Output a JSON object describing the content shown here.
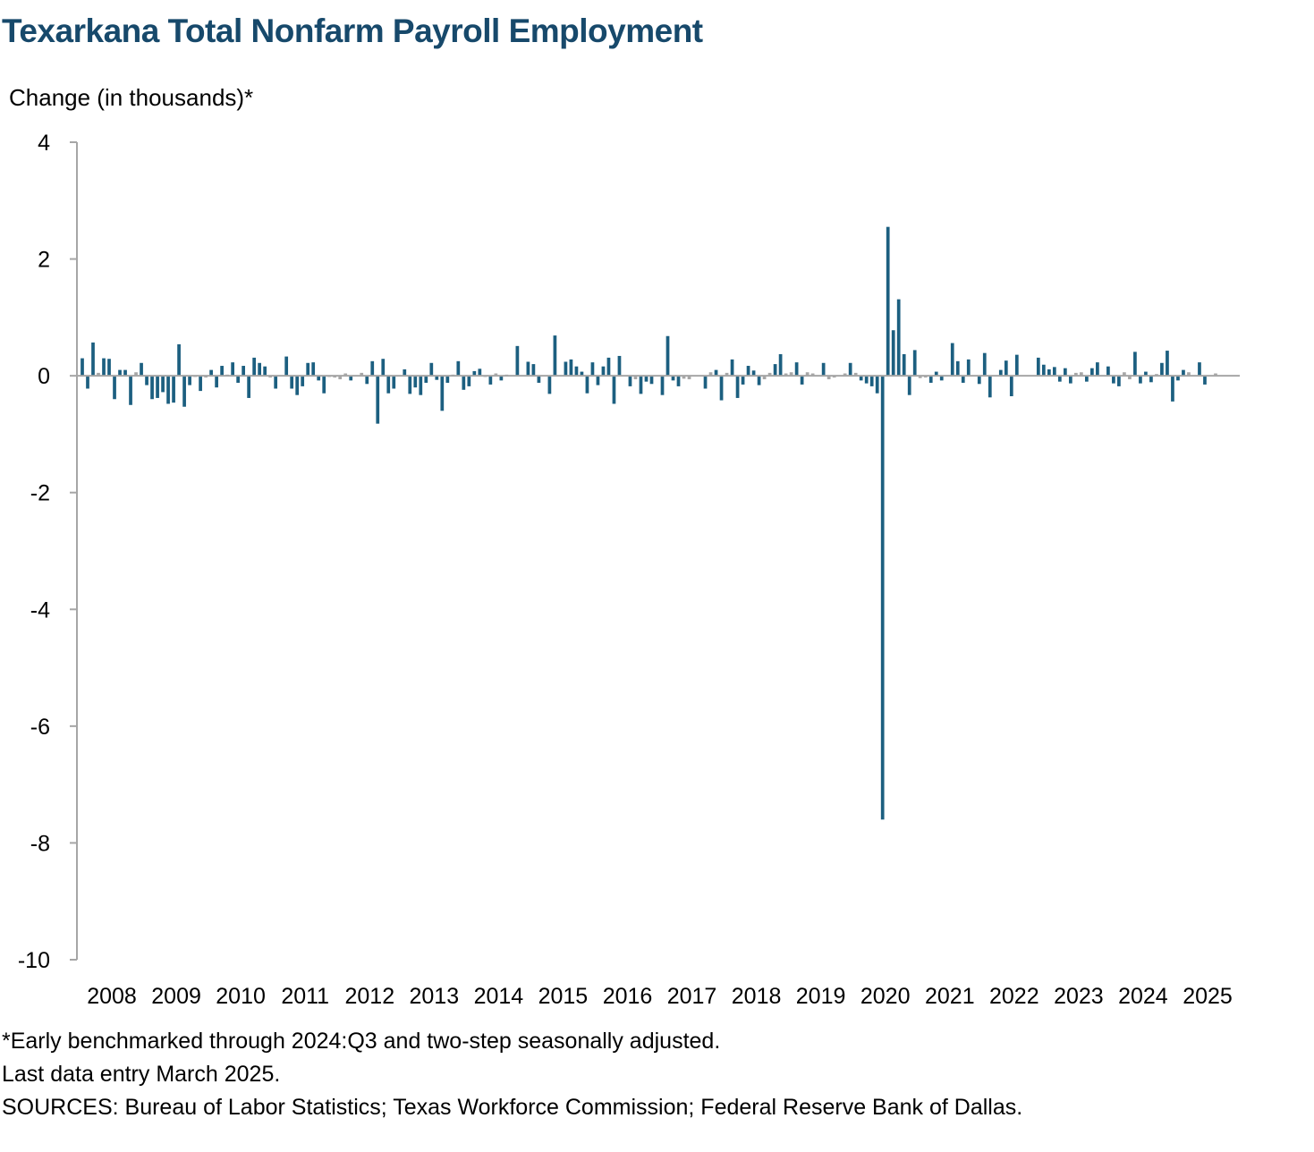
{
  "chart_data": {
    "type": "bar",
    "title": "Texarkana Total Nonfarm Payroll Employment",
    "ylabel": "Change (in thousands)*",
    "xlabel": "",
    "ylim": [
      -10,
      4
    ],
    "yticks": [
      4,
      2,
      0,
      -2,
      -4,
      -6,
      -8,
      -10
    ],
    "ytick_labels": [
      "4",
      "2",
      "0",
      "-2",
      "-4",
      "-6",
      "-8",
      "-10"
    ],
    "x_start": "2008-01",
    "x_end": "2025-03",
    "xtick_labels": [
      "2008",
      "2009",
      "2010",
      "2011",
      "2012",
      "2013",
      "2014",
      "2015",
      "2016",
      "2017",
      "2018",
      "2019",
      "2020",
      "2021",
      "2022",
      "2023",
      "2024",
      "2025"
    ],
    "grid": false,
    "legend": "none",
    "colors": {
      "positive_bar": "#1c5f80",
      "negative_bar": "#1c5f80",
      "small_bar": "#a6a6a6",
      "axis": "#a6a6a6",
      "title": "#17496b"
    },
    "series": [
      {
        "values": [
          0.3,
          -0.22,
          0.57,
          0.05,
          0.3,
          0.29,
          -0.4,
          0.1,
          0.1,
          -0.5,
          0.06,
          0.22,
          -0.16,
          -0.4,
          -0.38,
          -0.28,
          -0.48,
          -0.46,
          0.54,
          -0.53,
          -0.16,
          -0.02,
          -0.26,
          -0.03,
          0.1,
          -0.2,
          0.17,
          0.02,
          0.23,
          -0.12,
          0.17,
          -0.38,
          0.31,
          0.22,
          0.16,
          -0.03,
          -0.22,
          0.0,
          0.33,
          -0.22,
          -0.33,
          -0.18,
          0.22,
          0.23,
          -0.08,
          -0.3,
          -0.02,
          -0.03,
          -0.06,
          0.04,
          -0.08,
          0.0,
          0.05,
          -0.14,
          0.25,
          -0.82,
          0.29,
          -0.3,
          -0.22,
          0.0,
          0.11,
          -0.31,
          -0.2,
          -0.33,
          -0.12,
          0.22,
          -0.07,
          -0.6,
          -0.12,
          0.02,
          0.25,
          -0.24,
          -0.18,
          0.08,
          0.12,
          -0.02,
          -0.15,
          0.04,
          -0.08,
          0.02,
          0.0,
          0.51,
          0.0,
          0.24,
          0.2,
          -0.12,
          0.0,
          -0.31,
          0.69,
          0.0,
          0.24,
          0.28,
          0.16,
          0.07,
          -0.3,
          0.23,
          -0.16,
          0.16,
          0.31,
          -0.48,
          0.34,
          0.0,
          -0.18,
          -0.06,
          -0.31,
          -0.1,
          -0.14,
          0.0,
          -0.33,
          0.68,
          -0.08,
          -0.18,
          -0.05,
          -0.06,
          0.0,
          0.0,
          -0.22,
          0.06,
          0.1,
          -0.42,
          0.05,
          0.28,
          -0.38,
          -0.15,
          0.17,
          0.09,
          -0.16,
          -0.06,
          0.05,
          0.2,
          0.37,
          0.04,
          0.06,
          0.23,
          -0.15,
          0.06,
          0.04,
          0.0,
          0.22,
          -0.06,
          -0.03,
          0.0,
          0.04,
          0.22,
          0.05,
          -0.08,
          -0.13,
          -0.18,
          -0.3,
          -7.6,
          2.55,
          0.78,
          1.31,
          0.37,
          -0.33,
          0.44,
          -0.04,
          -0.03,
          -0.12,
          0.07,
          -0.08,
          0.0,
          0.56,
          0.25,
          -0.12,
          0.28,
          0.0,
          -0.14,
          0.39,
          -0.37,
          0.0,
          0.1,
          0.26,
          -0.35,
          0.36,
          0.0,
          0.0,
          0.0,
          0.31,
          0.19,
          0.11,
          0.15,
          -0.1,
          0.13,
          -0.13,
          0.05,
          0.06,
          -0.1,
          0.13,
          0.23,
          0.0,
          0.16,
          -0.13,
          -0.18,
          0.06,
          -0.06,
          0.41,
          -0.13,
          0.07,
          -0.11,
          0.03,
          0.22,
          0.43,
          -0.44,
          -0.08,
          0.1,
          0.06,
          0.0,
          0.23,
          -0.15,
          0.0,
          0.04,
          0.0
        ]
      }
    ]
  },
  "notes": [
    "*Early benchmarked through 2024:Q3 and two-step seasonally adjusted.",
    "Last data entry March 2025.",
    "SOURCES: Bureau of Labor Statistics; Texas Workforce Commission; Federal Reserve Bank of Dallas."
  ]
}
